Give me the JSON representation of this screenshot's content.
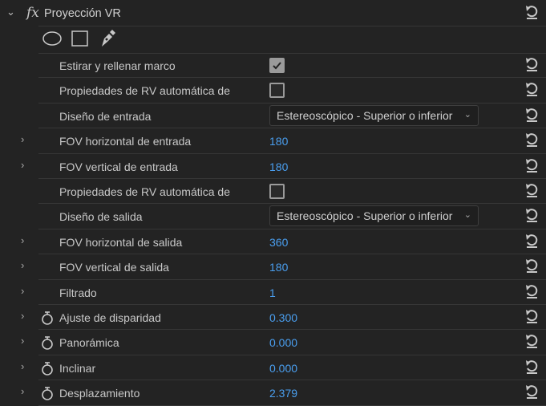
{
  "effect": {
    "title": "Proyección VR",
    "fx_label": "fx"
  },
  "mask_tools": [
    "ellipse-mask",
    "rectangle-mask",
    "pen-mask"
  ],
  "rows": [
    {
      "label": "Estirar y rellenar marco",
      "type": "checkbox",
      "checked": true
    },
    {
      "label": "Propiedades de RV automática de",
      "type": "checkbox",
      "checked": false
    },
    {
      "label": "Diseño de entrada",
      "type": "dropdown",
      "value": "Estereoscópico - Superior o inferior"
    },
    {
      "label": "FOV horizontal de entrada",
      "type": "value",
      "value": "180",
      "expandable": true
    },
    {
      "label": "FOV vertical de entrada",
      "type": "value",
      "value": "180",
      "expandable": true
    },
    {
      "label": "Propiedades de RV automática de",
      "type": "checkbox",
      "checked": false
    },
    {
      "label": "Diseño de salida",
      "type": "dropdown",
      "value": "Estereoscópico - Superior o inferior"
    },
    {
      "label": "FOV horizontal de salida",
      "type": "value",
      "value": "360",
      "expandable": true
    },
    {
      "label": "FOV vertical de salida",
      "type": "value",
      "value": "180",
      "expandable": true
    },
    {
      "label": "Filtrado",
      "type": "value",
      "value": "1",
      "expandable": true
    },
    {
      "label": "Ajuste de disparidad",
      "type": "value",
      "value": "0.300",
      "expandable": true,
      "stopwatch": true
    },
    {
      "label": "Panorámica",
      "type": "value",
      "value": "0.000",
      "expandable": true,
      "stopwatch": true
    },
    {
      "label": "Inclinar",
      "type": "value",
      "value": "0.000",
      "expandable": true,
      "stopwatch": true
    },
    {
      "label": "Desplazamiento",
      "type": "value",
      "value": "2.379",
      "expandable": true,
      "stopwatch": true
    }
  ],
  "colors": {
    "background": "#232323",
    "value": "#4a9ff0",
    "text": "#c8c8c8"
  }
}
